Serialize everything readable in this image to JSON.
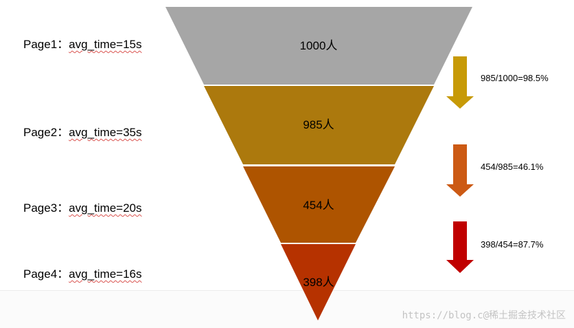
{
  "pages": [
    {
      "name": "Page1",
      "sep": "：",
      "metric": "avg_time=15s"
    },
    {
      "name": "Page2",
      "sep": "：",
      "metric": "avg_time=35s"
    },
    {
      "name": "Page3",
      "sep": "：",
      "metric": "avg_time=20s"
    },
    {
      "name": "Page4",
      "sep": "：",
      "metric": "avg_time=16s"
    }
  ],
  "funnel": {
    "stages": [
      {
        "count": "1000人",
        "color": "#a6a6a6"
      },
      {
        "count": "985人",
        "color": "#ac790d"
      },
      {
        "count": "454人",
        "color": "#ae5400"
      },
      {
        "count": "398人",
        "color": "#b63200"
      }
    ]
  },
  "conversions": [
    {
      "text": "985/1000=98.5%",
      "arrow_color": "#c79a07"
    },
    {
      "text": "454/985=46.1%",
      "arrow_color": "#cc5a14"
    },
    {
      "text": "398/454=87.7%",
      "arrow_color": "#c00000"
    }
  ],
  "watermark": "https://blog.c@稀土掘金技术社区"
}
